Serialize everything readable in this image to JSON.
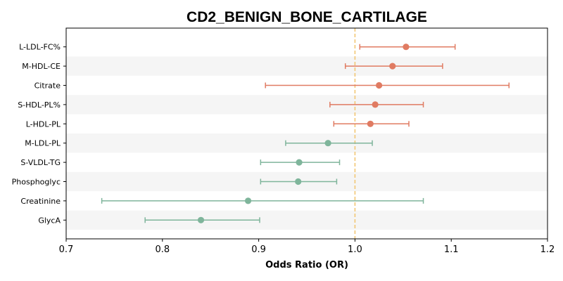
{
  "chart_data": {
    "type": "forest",
    "title": "CD2_BENIGN_BONE_CARTILAGE",
    "xlabel": "Odds Ratio (OR)",
    "ylabel": "",
    "xlim": [
      0.7,
      1.2
    ],
    "xticks": [
      "0.7",
      "0.8",
      "0.9",
      "1.0",
      "1.1",
      "1.2"
    ],
    "reference_line": 1.0,
    "reference_color": "#f2c46d",
    "colors": {
      "risk": "#e07b62",
      "protective": "#7fb59b",
      "band": "#f5f5f5"
    },
    "rows": [
      {
        "label": "L-LDL-FC%",
        "or": 1.053,
        "lower": 1.005,
        "upper": 1.104
      },
      {
        "label": "M-HDL-CE",
        "or": 1.039,
        "lower": 0.99,
        "upper": 1.091
      },
      {
        "label": "Citrate",
        "or": 1.025,
        "lower": 0.907,
        "upper": 1.16
      },
      {
        "label": "S-HDL-PL%",
        "or": 1.021,
        "lower": 0.974,
        "upper": 1.071
      },
      {
        "label": "L-HDL-PL",
        "or": 1.016,
        "lower": 0.978,
        "upper": 1.056
      },
      {
        "label": "M-LDL-PL",
        "or": 0.972,
        "lower": 0.928,
        "upper": 1.018
      },
      {
        "label": "S-VLDL-TG",
        "or": 0.942,
        "lower": 0.902,
        "upper": 0.984
      },
      {
        "label": "Phosphoglyc",
        "or": 0.941,
        "lower": 0.902,
        "upper": 0.981
      },
      {
        "label": "Creatinine",
        "or": 0.889,
        "lower": 0.737,
        "upper": 1.071
      },
      {
        "label": "GlycA",
        "or": 0.84,
        "lower": 0.782,
        "upper": 0.901
      }
    ]
  }
}
